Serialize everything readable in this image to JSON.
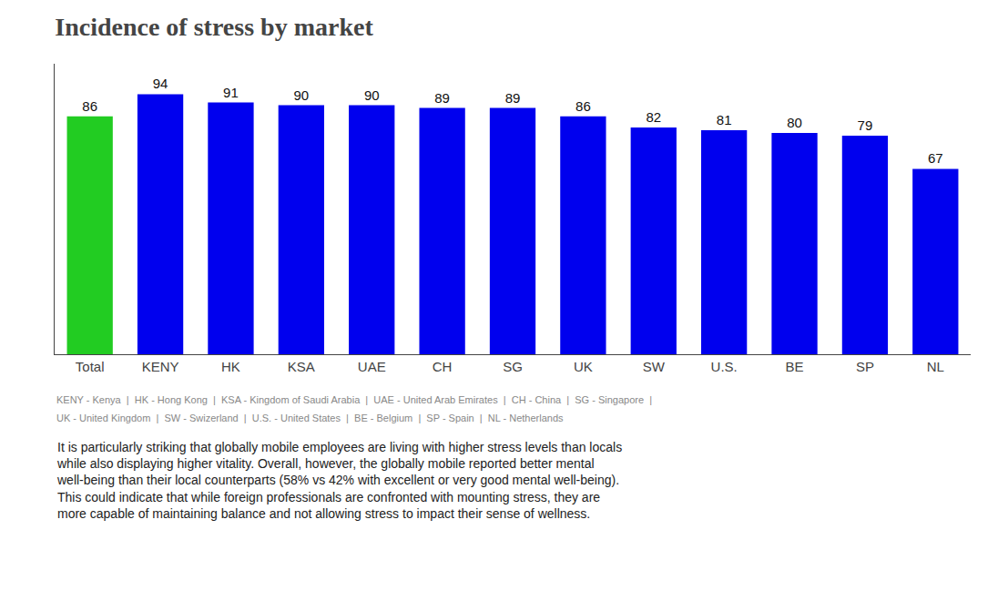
{
  "chart_data": {
    "type": "bar",
    "title": "Incidence of stress by market",
    "categories": [
      "Total",
      "KENY",
      "HK",
      "KSA",
      "UAE",
      "CH",
      "SG",
      "UK",
      "SW",
      "U.S.",
      "BE",
      "SP",
      "NL"
    ],
    "values": [
      86,
      94,
      91,
      90,
      90,
      89,
      89,
      86,
      82,
      81,
      80,
      79,
      67
    ],
    "colors": [
      "#22cc22",
      "#0000ee",
      "#0000ee",
      "#0000ee",
      "#0000ee",
      "#0000ee",
      "#0000ee",
      "#0000ee",
      "#0000ee",
      "#0000ee",
      "#0000ee",
      "#0000ee",
      "#0000ee"
    ],
    "ylim": [
      0,
      105
    ],
    "grid": false,
    "data_labels": true,
    "tick_labels": "x",
    "annotations": [
      "KENY - Kenya  |  HK - Hong Kong  |  KSA - Kingdom of Saudi Arabia  |  UAE - United Arab Emirates  |  CH - China  |  SG - Singapore  |",
      "UK - United Kingdom  |  SW - Swizerland  |  U.S. - United States  |  BE - Belgium  |  SP - Spain  |  NL - Netherlands",
      "It is particularly striking that globally mobile employees are living with higher stress levels than locals\nwhile also displaying higher vitality. Overall, however, the globally mobile reported better mental\nwell-being than their local counterparts (58% vs 42% with excellent or very good mental well-being).\nThis could indicate that while foreign professionals are confronted with mounting stress, they are\nmore capable of maintaining balance and not allowing stress to impact their sense of wellness."
    ]
  }
}
